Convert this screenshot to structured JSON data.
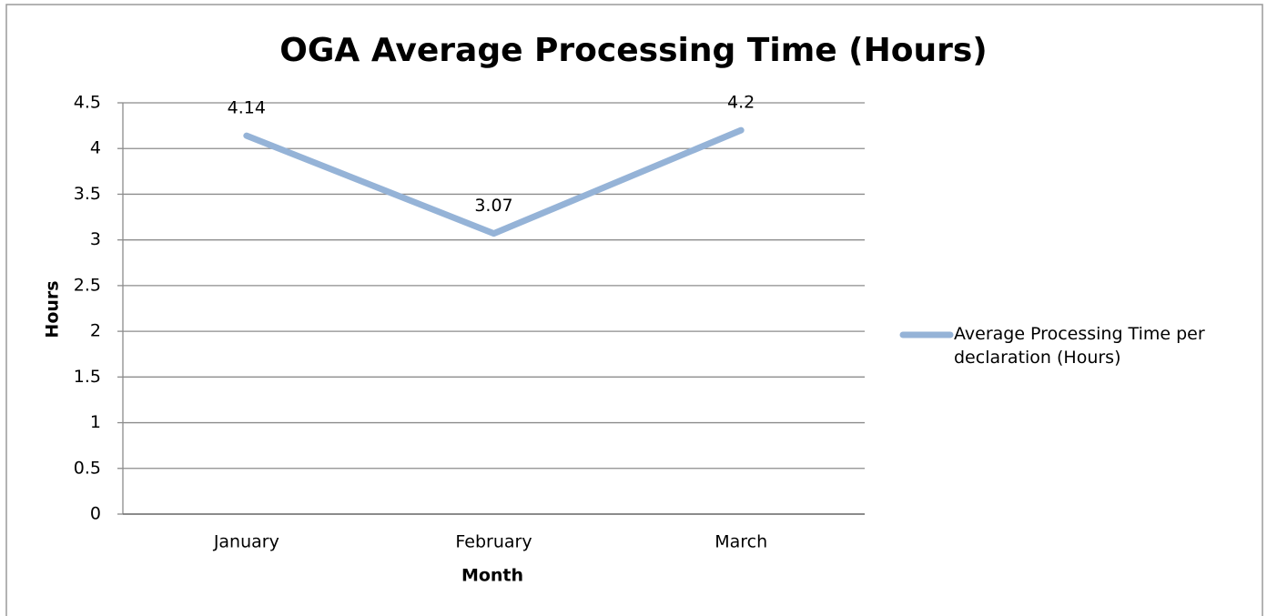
{
  "chart_data": {
    "type": "line",
    "title": "OGA Average Processing Time (Hours)",
    "x_label": "Month",
    "y_label": "Hours",
    "categories": [
      "January",
      "February",
      "March"
    ],
    "series": [
      {
        "name": "Average Processing Time per declaration (Hours)",
        "color": "#95b3d7",
        "values": [
          4.14,
          3.07,
          4.2
        ]
      }
    ],
    "ylim": [
      0,
      4.5
    ],
    "yticks": [
      0,
      0.5,
      1,
      1.5,
      2,
      2.5,
      3,
      3.5,
      4,
      4.5
    ],
    "grid": true,
    "legend": "right",
    "data_labels": true
  }
}
